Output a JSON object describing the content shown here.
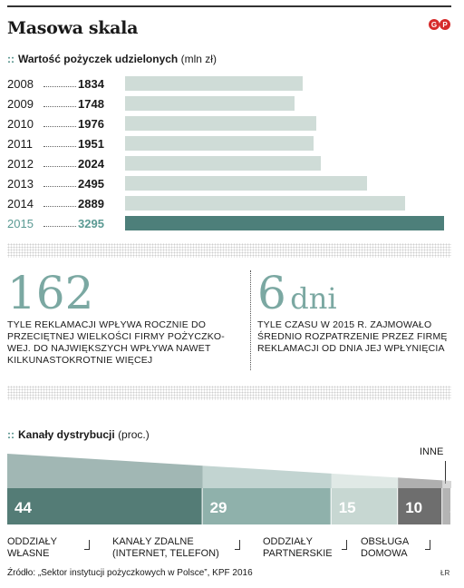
{
  "header": {
    "title": "Masowa skala",
    "logo": "GP"
  },
  "loans": {
    "title_marker": "::",
    "title": "Wartość pożyczek udzielonych",
    "unit": "(mln zł)"
  },
  "stats": [
    {
      "number": "162",
      "suffix": "",
      "text": "Tyle reklamacji wpływa rocznie do przeciętnej wielkości firmy pożyczko-wej. Do największych wpływa nawet kilkunastokrotnie więcej"
    },
    {
      "number": "6",
      "suffix": "dni",
      "text": "Tyle czasu w 2015 r. zajmowało średnio rozpatrzenie przez firmę reklamacji od dnia jej wpłynięcia"
    }
  ],
  "channels": {
    "title_marker": "::",
    "title": "Kanały dystrybucji",
    "unit": "(proc.)",
    "other_label": "Inne",
    "labels": [
      "Oddziały własne",
      "Kanały zdalne (internet, telefon)",
      "Oddziały partnerskie",
      "Obsługa domowa"
    ]
  },
  "source": "Źródło: „Sektor instytucji pożyczkowych w Polsce”, KPF 2016",
  "initials": "ŁR",
  "colors": {
    "bar": "#cfdcd7",
    "bar_highlight": "#4d7f7a",
    "accent_text": "#5b9a93",
    "segments": [
      "#547c76",
      "#8fb1ab",
      "#c7d7d2",
      "#6e6e6e",
      "#b4b4b4"
    ]
  },
  "chart_data": [
    {
      "type": "bar",
      "title": "Wartość pożyczek udzielonych",
      "unit": "mln zł",
      "categories": [
        "2008",
        "2009",
        "2010",
        "2011",
        "2012",
        "2013",
        "2014",
        "2015"
      ],
      "values": [
        1834,
        1748,
        1976,
        1951,
        2024,
        2495,
        2889,
        3295
      ],
      "highlight": "2015",
      "orientation": "horizontal"
    },
    {
      "type": "bar",
      "title": "Kanały dystrybucji",
      "unit": "proc.",
      "stacked": true,
      "categories": [
        "Oddziały własne",
        "Kanały zdalne (internet, telefon)",
        "Oddziały partnerskie",
        "Obsługa domowa",
        "Inne"
      ],
      "values": [
        44,
        29,
        15,
        10,
        2
      ]
    }
  ]
}
